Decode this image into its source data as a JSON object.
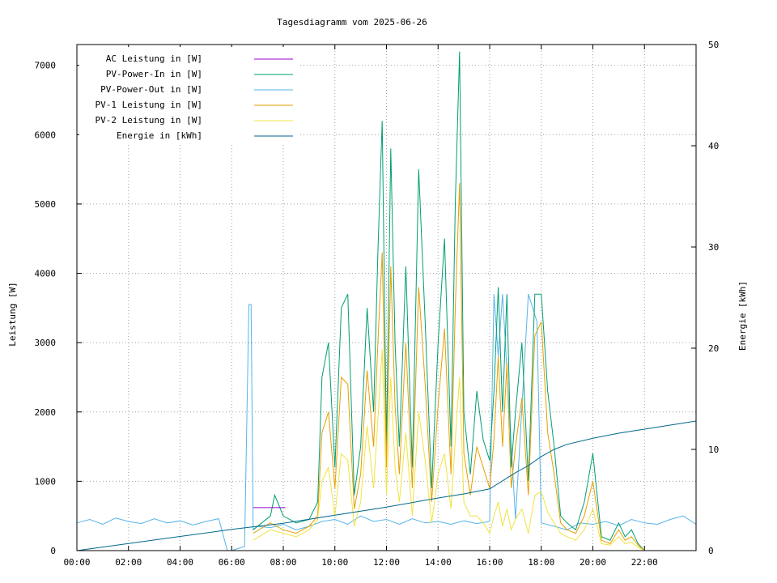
{
  "chart_data": {
    "type": "line",
    "title": "Tagesdiagramm vom 2025-06-26",
    "ylabel": "Leistung [W]",
    "y2label": "Energie [kWh]",
    "ylim": [
      0,
      7300
    ],
    "y2lim": [
      0,
      50
    ],
    "xlim": [
      "00:00",
      "24:00"
    ],
    "x_ticks": [
      "00:00",
      "02:00",
      "04:00",
      "06:00",
      "08:00",
      "10:00",
      "12:00",
      "14:00",
      "16:00",
      "18:00",
      "20:00",
      "22:00"
    ],
    "y_ticks": [
      0,
      1000,
      2000,
      3000,
      4000,
      5000,
      6000,
      7000
    ],
    "y2_ticks": [
      0,
      10,
      20,
      30,
      40,
      50
    ],
    "grid": true,
    "legend_position": "top-left",
    "series": [
      {
        "name": "AC Leistung in [W]",
        "color": "#9400d3",
        "axis": "y1",
        "x": [
          "06:50",
          "08:05"
        ],
        "values": [
          620,
          620
        ]
      },
      {
        "name": "PV-Power-In in [W]",
        "color": "#009e73",
        "axis": "y1",
        "x": [
          "06:50",
          "07:30",
          "07:40",
          "08:00",
          "08:30",
          "09:00",
          "09:20",
          "09:30",
          "09:45",
          "10:00",
          "10:15",
          "10:30",
          "10:45",
          "11:00",
          "11:15",
          "11:30",
          "11:40",
          "11:50",
          "12:00",
          "12:10",
          "12:20",
          "12:30",
          "12:45",
          "13:00",
          "13:15",
          "13:30",
          "13:45",
          "14:00",
          "14:15",
          "14:30",
          "14:40",
          "14:50",
          "15:00",
          "15:15",
          "15:30",
          "15:45",
          "16:00",
          "16:10",
          "16:20",
          "16:30",
          "16:40",
          "16:50",
          "17:00",
          "17:15",
          "17:30",
          "17:45",
          "18:00",
          "18:15",
          "18:30",
          "18:45",
          "19:00",
          "19:20",
          "19:40",
          "20:00",
          "20:20",
          "20:40",
          "21:00",
          "21:15",
          "21:30",
          "21:45",
          "22:00"
        ],
        "values": [
          300,
          500,
          800,
          500,
          400,
          450,
          700,
          2500,
          3000,
          1200,
          3500,
          3700,
          800,
          1500,
          3500,
          2000,
          4300,
          6200,
          1500,
          5800,
          3000,
          1500,
          4100,
          1200,
          5500,
          3300,
          900,
          3000,
          4500,
          1500,
          5000,
          7200,
          2000,
          1100,
          2300,
          1600,
          1300,
          2300,
          3800,
          2000,
          3700,
          1200,
          2000,
          3000,
          1000,
          3700,
          3700,
          2300,
          1500,
          500,
          400,
          300,
          700,
          1400,
          200,
          150,
          400,
          200,
          300,
          100,
          0
        ]
      },
      {
        "name": "PV-Power-Out in [W]",
        "color": "#56b4e9",
        "axis": "y1",
        "x": [
          "00:00",
          "00:30",
          "01:00",
          "01:30",
          "02:00",
          "02:30",
          "03:00",
          "03:30",
          "04:00",
          "04:30",
          "05:00",
          "05:30",
          "05:50",
          "06:00",
          "06:30",
          "06:40",
          "06:45",
          "06:50",
          "07:00",
          "07:30",
          "08:00",
          "08:30",
          "09:00",
          "09:30",
          "10:00",
          "10:30",
          "11:00",
          "11:30",
          "12:00",
          "12:30",
          "13:00",
          "13:30",
          "14:00",
          "14:30",
          "15:00",
          "15:30",
          "16:00",
          "16:10",
          "16:20",
          "16:30",
          "17:00",
          "17:30",
          "17:40",
          "17:50",
          "18:00",
          "18:30",
          "19:00",
          "19:30",
          "20:00",
          "20:30",
          "21:00",
          "21:30",
          "22:00",
          "22:30",
          "23:00",
          "23:30",
          "24:00"
        ],
        "values": [
          400,
          450,
          380,
          470,
          420,
          390,
          460,
          400,
          430,
          370,
          420,
          460,
          0,
          0,
          60,
          3550,
          3550,
          300,
          350,
          330,
          380,
          300,
          350,
          420,
          450,
          380,
          500,
          420,
          450,
          380,
          460,
          400,
          420,
          380,
          430,
          390,
          420,
          3700,
          2800,
          3700,
          450,
          3700,
          3500,
          3300,
          400,
          350,
          300,
          400,
          380,
          420,
          360,
          450,
          400,
          380,
          450,
          500,
          380
        ]
      },
      {
        "name": "PV-1 Leistung in [W]",
        "color": "#e69f00",
        "axis": "y1",
        "x": [
          "06:50",
          "07:30",
          "08:00",
          "08:30",
          "09:00",
          "09:20",
          "09:30",
          "09:45",
          "10:00",
          "10:15",
          "10:30",
          "10:45",
          "11:00",
          "11:15",
          "11:30",
          "11:40",
          "11:50",
          "12:00",
          "12:10",
          "12:20",
          "12:30",
          "12:45",
          "13:00",
          "13:15",
          "13:30",
          "13:45",
          "14:00",
          "14:15",
          "14:30",
          "14:40",
          "14:50",
          "15:00",
          "15:15",
          "15:30",
          "15:45",
          "16:00",
          "16:10",
          "16:20",
          "16:30",
          "16:40",
          "16:50",
          "17:00",
          "17:15",
          "17:30",
          "17:45",
          "18:00",
          "18:15",
          "18:30",
          "18:45",
          "19:00",
          "19:20",
          "19:40",
          "20:00",
          "20:20",
          "20:40",
          "21:00",
          "21:15",
          "21:30",
          "21:45",
          "22:00"
        ],
        "values": [
          250,
          400,
          300,
          250,
          350,
          500,
          1700,
          2000,
          900,
          2500,
          2400,
          600,
          1100,
          2600,
          1500,
          3000,
          4300,
          1200,
          4100,
          2100,
          1100,
          3000,
          900,
          3800,
          2400,
          700,
          2100,
          3200,
          1100,
          3500,
          5300,
          1400,
          800,
          1500,
          1200,
          900,
          1600,
          2800,
          1500,
          2700,
          900,
          1500,
          2200,
          800,
          3100,
          3300,
          1700,
          1100,
          400,
          300,
          250,
          500,
          1000,
          150,
          100,
          300,
          150,
          200,
          80,
          0
        ]
      },
      {
        "name": "PV-2 Leistung in [W]",
        "color": "#f0e442",
        "axis": "y1",
        "x": [
          "06:50",
          "07:30",
          "08:00",
          "08:30",
          "09:00",
          "09:20",
          "09:30",
          "09:45",
          "10:00",
          "10:15",
          "10:30",
          "10:45",
          "11:00",
          "11:15",
          "11:30",
          "11:40",
          "11:50",
          "12:00",
          "12:10",
          "12:20",
          "12:30",
          "12:45",
          "13:00",
          "13:15",
          "13:30",
          "13:45",
          "14:00",
          "14:15",
          "14:30",
          "14:40",
          "14:50",
          "15:00",
          "15:15",
          "15:30",
          "15:45",
          "16:00",
          "16:10",
          "16:20",
          "16:30",
          "16:40",
          "16:50",
          "17:00",
          "17:15",
          "17:30",
          "17:45",
          "18:00",
          "18:15",
          "18:30",
          "18:45",
          "19:00",
          "19:20",
          "19:40",
          "20:00",
          "20:20",
          "20:40",
          "21:00",
          "21:15",
          "21:30",
          "21:45",
          "22:00"
        ],
        "values": [
          150,
          300,
          250,
          200,
          300,
          450,
          1000,
          1200,
          500,
          1400,
          1300,
          350,
          700,
          1800,
          900,
          1900,
          2900,
          800,
          2500,
          1200,
          700,
          1700,
          500,
          2000,
          1300,
          400,
          1100,
          1400,
          600,
          1600,
          2500,
          700,
          500,
          500,
          400,
          250,
          500,
          700,
          350,
          600,
          300,
          450,
          600,
          250,
          800,
          850,
          550,
          400,
          250,
          200,
          150,
          300,
          600,
          100,
          80,
          200,
          100,
          120,
          50,
          0
        ]
      },
      {
        "name": "Energie in [kWh]",
        "color": "#00688b",
        "axis": "y2",
        "x": [
          "00:00",
          "02:00",
          "04:00",
          "06:00",
          "07:00",
          "08:00",
          "10:00",
          "12:00",
          "14:00",
          "15:00",
          "16:00",
          "16:30",
          "17:00",
          "17:30",
          "18:00",
          "18:30",
          "19:00",
          "20:00",
          "21:00",
          "22:00",
          "23:00",
          "24:00"
        ],
        "values": [
          0,
          0.7,
          1.4,
          2.1,
          2.4,
          2.7,
          3.5,
          4.3,
          5.2,
          5.6,
          6.1,
          6.9,
          7.7,
          8.4,
          9.3,
          10.0,
          10.5,
          11.1,
          11.6,
          12.0,
          12.4,
          12.8
        ]
      }
    ]
  }
}
